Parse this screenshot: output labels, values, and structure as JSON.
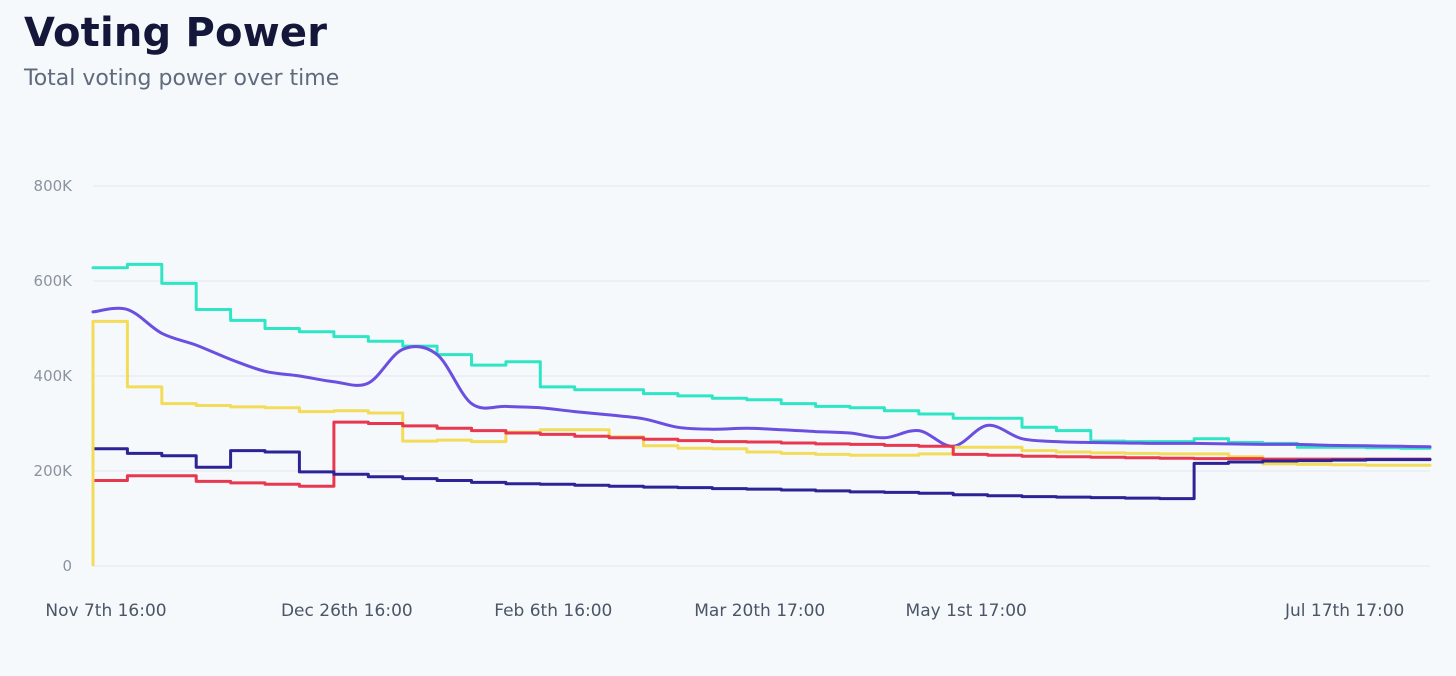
{
  "header": {
    "title": "Voting Power",
    "subtitle": "Total voting power over time"
  },
  "chart_data": {
    "type": "line",
    "title": "Voting Power",
    "subtitle": "Total voting power over time",
    "xlabel": "",
    "ylabel": "",
    "ylim": [
      0,
      800000
    ],
    "y_ticks": [
      0,
      200000,
      400000,
      600000,
      800000
    ],
    "y_tick_labels": [
      "0",
      "200K",
      "400K",
      "600K",
      "800K"
    ],
    "x_tick_labels": [
      "Nov 7th 16:00",
      "Dec 26th 16:00",
      "Feb 6th 16:00",
      "Mar 20th 17:00",
      "May 1st 17:00",
      "Jul 17th 17:00"
    ],
    "x_tick_days": [
      0,
      49,
      91,
      133,
      175,
      252
    ],
    "x_range_days": [
      0,
      272
    ],
    "grid": true,
    "legend": "none",
    "x": [
      0,
      7,
      14,
      21,
      28,
      35,
      42,
      49,
      56,
      63,
      70,
      77,
      84,
      91,
      98,
      105,
      112,
      119,
      126,
      133,
      140,
      147,
      154,
      161,
      168,
      175,
      182,
      189,
      196,
      203,
      210,
      217,
      224,
      231,
      238,
      245,
      252,
      259,
      266,
      272
    ],
    "series": [
      {
        "color": "#2ee6c5",
        "step": true,
        "values": [
          628000,
          635000,
          595000,
          540000,
          517000,
          500000,
          493000,
          483000,
          473000,
          463000,
          445000,
          423000,
          430000,
          377000,
          371000,
          371000,
          363000,
          358000,
          353000,
          350000,
          342000,
          336000,
          333000,
          327000,
          320000,
          311000,
          311000,
          292000,
          285000,
          263000,
          262000,
          262000,
          268000,
          260000,
          258000,
          250000,
          250000,
          249000,
          248000,
          248000
        ]
      },
      {
        "color": "#6a4fe0",
        "step": false,
        "values": [
          535000,
          540000,
          490000,
          465000,
          435000,
          410000,
          400000,
          388000,
          385000,
          456000,
          445000,
          342000,
          336000,
          333000,
          325000,
          318000,
          310000,
          292000,
          288000,
          290000,
          287000,
          283000,
          280000,
          270000,
          285000,
          252000,
          296000,
          268000,
          262000,
          260000,
          259000,
          258000,
          258000,
          257000,
          256000,
          256000,
          254000,
          253000,
          252000,
          251000
        ]
      },
      {
        "color": "#f2dc5a",
        "step": true,
        "values": [
          515000,
          377000,
          342000,
          338000,
          335000,
          333000,
          325000,
          327000,
          322000,
          263000,
          265000,
          262000,
          282000,
          287000,
          287000,
          272000,
          253000,
          248000,
          247000,
          240000,
          237000,
          235000,
          233000,
          233000,
          236000,
          250000,
          250000,
          243000,
          240000,
          238000,
          237000,
          236000,
          236000,
          230000,
          215000,
          214000,
          213000,
          212000,
          212000,
          212000
        ]
      },
      {
        "color": "#e8384f",
        "step": true,
        "values": [
          180000,
          190000,
          190000,
          178000,
          175000,
          172000,
          168000,
          303000,
          300000,
          295000,
          290000,
          285000,
          280000,
          277000,
          273000,
          270000,
          267000,
          264000,
          262000,
          261000,
          259000,
          257000,
          256000,
          254000,
          252000,
          235000,
          233000,
          231000,
          230000,
          229000,
          228000,
          227000,
          226000,
          226000,
          225000,
          225000,
          225000,
          225000,
          225000,
          225000
        ]
      },
      {
        "color": "#2b2396",
        "step": true,
        "values": [
          247000,
          237000,
          232000,
          208000,
          243000,
          240000,
          198000,
          193000,
          188000,
          184000,
          180000,
          176000,
          173000,
          172000,
          170000,
          168000,
          166000,
          165000,
          163000,
          162000,
          160000,
          158000,
          156000,
          155000,
          153000,
          150000,
          148000,
          146000,
          145000,
          144000,
          143000,
          142000,
          216000,
          219000,
          221000,
          222000,
          223000,
          224000,
          224000,
          224000
        ]
      }
    ]
  }
}
